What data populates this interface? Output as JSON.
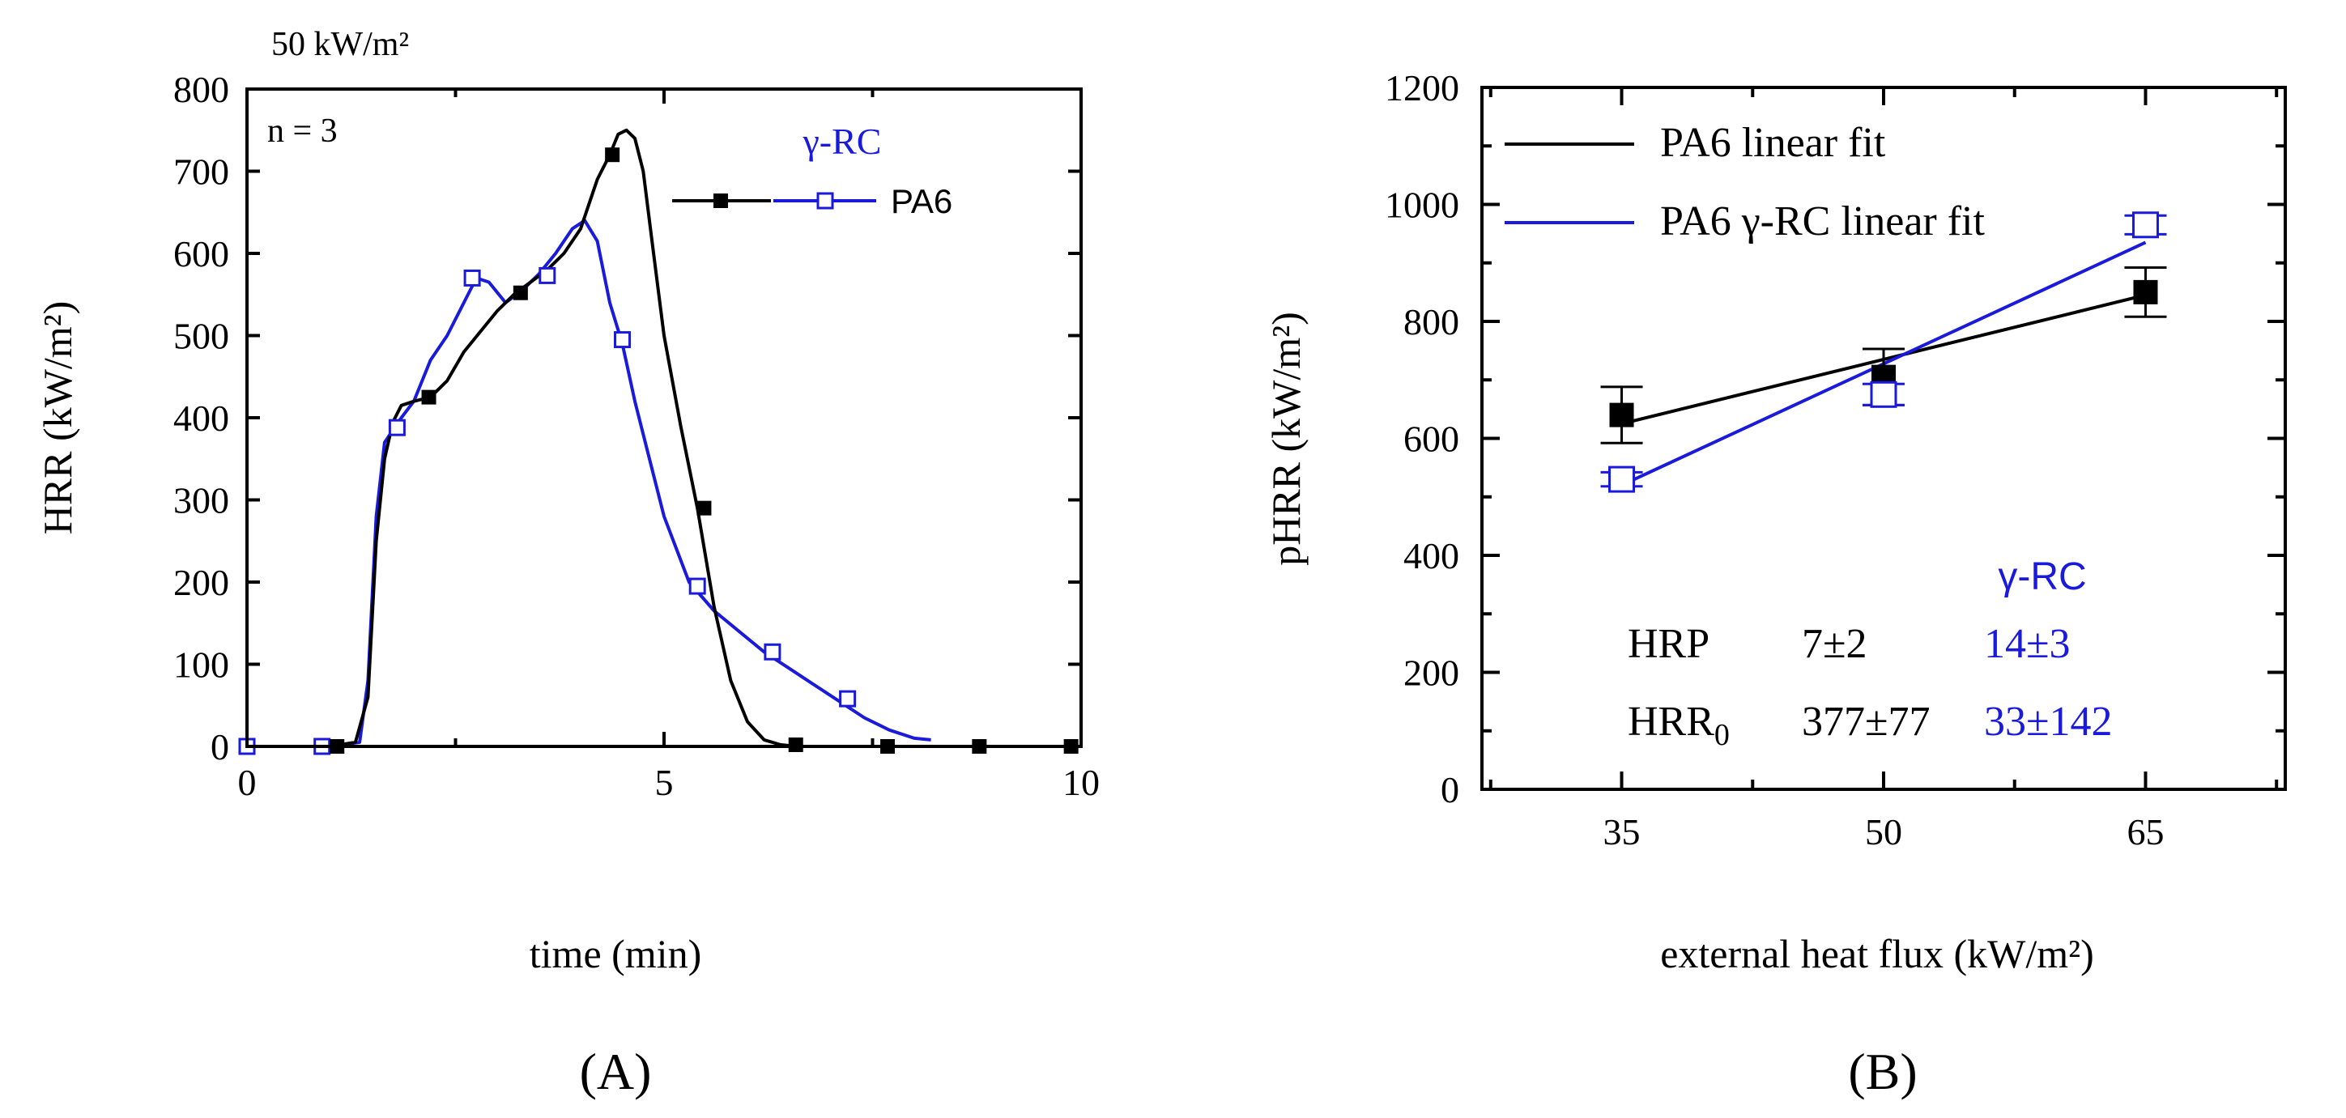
{
  "chart_data": [
    {
      "panel": "A",
      "type": "line",
      "title": "50 kW/m²",
      "annotation": "n = 3",
      "xlabel": "time (min)",
      "ylabel": "HRR (kW/m²)",
      "xlim": [
        0,
        10
      ],
      "ylim": [
        0,
        800
      ],
      "xticks": [
        0,
        5,
        10
      ],
      "yticks": [
        0,
        100,
        200,
        300,
        400,
        500,
        600,
        700,
        800
      ],
      "legend": {
        "placement": "top-right",
        "upper_label": "γ-RC",
        "lower_label": "PA6"
      },
      "series": [
        {
          "name": "PA6",
          "color": "#000000",
          "marker": "filled-square",
          "x": [
            0.0,
            1.0,
            1.3,
            1.45,
            1.55,
            1.65,
            1.75,
            1.85,
            2.0,
            2.2,
            2.4,
            2.6,
            2.8,
            3.0,
            3.2,
            3.4,
            3.6,
            3.8,
            4.0,
            4.2,
            4.35,
            4.45,
            4.55,
            4.65,
            4.75,
            4.85,
            5.0,
            5.2,
            5.4,
            5.6,
            5.8,
            6.0,
            6.2,
            6.4,
            6.6,
            7.0,
            8.0,
            9.0,
            10.0
          ],
          "y": [
            0,
            0,
            5,
            60,
            250,
            350,
            395,
            415,
            420,
            425,
            445,
            480,
            505,
            530,
            550,
            565,
            580,
            600,
            630,
            690,
            720,
            745,
            750,
            740,
            700,
            620,
            500,
            390,
            290,
            170,
            80,
            30,
            8,
            2,
            0,
            0,
            0,
            0,
            0
          ],
          "marker_x": [
            1.08,
            2.18,
            3.28,
            4.38,
            5.48,
            6.58,
            7.68,
            8.78,
            9.88
          ],
          "marker_y": [
            0,
            425,
            552,
            720,
            290,
            2,
            0,
            0,
            0
          ]
        },
        {
          "name": "γ-RC",
          "color": "#1a1adc",
          "marker": "open-square",
          "x": [
            0.0,
            1.0,
            1.35,
            1.45,
            1.55,
            1.65,
            1.75,
            1.85,
            2.0,
            2.2,
            2.4,
            2.6,
            2.75,
            2.9,
            3.1,
            3.3,
            3.5,
            3.7,
            3.9,
            4.05,
            4.2,
            4.35,
            4.5,
            4.65,
            4.8,
            5.0,
            5.3,
            5.6,
            5.9,
            6.2,
            6.5,
            6.8,
            7.1,
            7.4,
            7.7,
            8.0,
            8.2
          ],
          "y": [
            0,
            0,
            5,
            80,
            280,
            370,
            385,
            400,
            420,
            470,
            500,
            540,
            570,
            565,
            540,
            555,
            575,
            600,
            630,
            640,
            615,
            540,
            490,
            420,
            360,
            280,
            200,
            165,
            140,
            115,
            95,
            75,
            55,
            35,
            20,
            10,
            8
          ],
          "marker_x": [
            0.0,
            0.9,
            1.8,
            2.7,
            3.6,
            4.5,
            5.4,
            6.3,
            7.2
          ],
          "marker_y": [
            0,
            0,
            388,
            570,
            573,
            495,
            195,
            115,
            58
          ]
        }
      ]
    },
    {
      "panel": "B",
      "type": "scatter",
      "xlabel": "external heat flux (kW/m²)",
      "ylabel": "pHRR (kW/m²)",
      "xlim": [
        27,
        73
      ],
      "ylim": [
        0,
        1200
      ],
      "xticks": [
        35,
        50,
        65
      ],
      "yticks": [
        0,
        200,
        400,
        600,
        800,
        1000,
        1200
      ],
      "legend": {
        "placement": "top-left"
      },
      "series": [
        {
          "name": "PA6",
          "fit_label": "PA6 linear fit",
          "color": "#000000",
          "marker": "filled-square",
          "x": [
            35,
            50,
            65
          ],
          "y": [
            640,
            705,
            850
          ],
          "err": [
            48,
            48,
            42
          ],
          "fit": {
            "x": [
              35,
              65
            ],
            "y": [
              625,
              845
            ]
          }
        },
        {
          "name": "PA6 γ-RC",
          "fit_label": "PA6 γ-RC linear fit",
          "color": "#1a1adc",
          "marker": "open-square",
          "x": [
            35,
            50,
            65
          ],
          "y": [
            530,
            675,
            965
          ],
          "err": [
            12,
            18,
            16
          ],
          "fit": {
            "x": [
              35,
              65
            ],
            "y": [
              520,
              935
            ]
          }
        }
      ],
      "table": {
        "header_blue": "γ-RC",
        "rows": [
          {
            "label": "HRP",
            "label_sub": "",
            "pa6": "7±2",
            "rc": "14±3"
          },
          {
            "label": "HRR",
            "label_sub": "0",
            "pa6": "377±77",
            "rc": "33±142"
          }
        ]
      }
    }
  ],
  "panel_labels": {
    "a": "(A)",
    "b": "(B)"
  },
  "colors": {
    "black": "#000000",
    "blue": "#1a1adc"
  }
}
